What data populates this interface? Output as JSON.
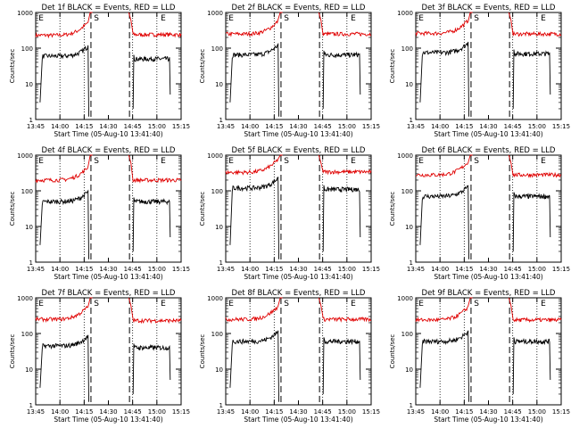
{
  "colors": {
    "events": "#000000",
    "lld": "#e00000",
    "axis": "#000000",
    "background": "#ffffff"
  },
  "chart_data": [
    {
      "type": "line",
      "title": "Det 1f BLACK = Events, RED = LLD",
      "xlabel": "Start Time (05-Aug-10 13:41:40)",
      "ylabel": "Counts/sec",
      "y_scale": "log",
      "ylim": [
        1,
        1000
      ],
      "y_ticks": [
        1,
        10,
        100,
        1000
      ],
      "x_ticks": [
        "13:45",
        "14:00",
        "14:15",
        "14:30",
        "14:45",
        "15:00",
        "15:15"
      ],
      "markers": [
        "E",
        "S",
        "E"
      ],
      "series": [
        {
          "name": "BLACK = Events",
          "color": "#000000",
          "level_before": 60,
          "level_after": 50
        },
        {
          "name": "RED = LLD",
          "color": "#e00000",
          "level_before": 230,
          "level_after": 240
        }
      ]
    },
    {
      "type": "line",
      "title": "Det 2f BLACK = Events, RED = LLD",
      "xlabel": "Start Time (05-Aug-10 13:41:40)",
      "ylabel": "Counts/sec",
      "y_scale": "log",
      "ylim": [
        1,
        1000
      ],
      "y_ticks": [
        1,
        10,
        100,
        1000
      ],
      "x_ticks": [
        "13:45",
        "14:00",
        "14:15",
        "14:30",
        "14:45",
        "15:00",
        "15:15"
      ],
      "markers": [
        "E",
        "S",
        "E"
      ],
      "series": [
        {
          "name": "BLACK = Events",
          "color": "#000000",
          "level_before": 65,
          "level_after": 65
        },
        {
          "name": "RED = LLD",
          "color": "#e00000",
          "level_before": 250,
          "level_after": 250
        }
      ]
    },
    {
      "type": "line",
      "title": "Det 3f BLACK = Events, RED = LLD",
      "xlabel": "Start Time (05-Aug-10 13:41:40)",
      "ylabel": "Counts/sec",
      "y_scale": "log",
      "ylim": [
        1,
        1000
      ],
      "y_ticks": [
        1,
        10,
        100,
        1000
      ],
      "x_ticks": [
        "13:45",
        "14:00",
        "14:15",
        "14:30",
        "14:45",
        "15:00",
        "15:15"
      ],
      "markers": [
        "E",
        "S",
        "E"
      ],
      "series": [
        {
          "name": "BLACK = Events",
          "color": "#000000",
          "level_before": 75,
          "level_after": 70
        },
        {
          "name": "RED = LLD",
          "color": "#e00000",
          "level_before": 260,
          "level_after": 250
        }
      ]
    },
    {
      "type": "line",
      "title": "Det 4f BLACK = Events, RED = LLD",
      "xlabel": "Start Time (05-Aug-10 13:41:40)",
      "ylabel": "Counts/sec",
      "y_scale": "log",
      "ylim": [
        1,
        1000
      ],
      "y_ticks": [
        1,
        10,
        100,
        1000
      ],
      "x_ticks": [
        "13:45",
        "14:00",
        "14:15",
        "14:30",
        "14:45",
        "15:00",
        "15:15"
      ],
      "markers": [
        "E",
        "S",
        "E"
      ],
      "series": [
        {
          "name": "BLACK = Events",
          "color": "#000000",
          "level_before": 50,
          "level_after": 50
        },
        {
          "name": "RED = LLD",
          "color": "#e00000",
          "level_before": 200,
          "level_after": 200
        }
      ]
    },
    {
      "type": "line",
      "title": "Det 5f BLACK = Events, RED = LLD",
      "xlabel": "Start Time (05-Aug-10 13:41:40)",
      "ylabel": "Counts/sec",
      "y_scale": "log",
      "ylim": [
        1,
        1000
      ],
      "y_ticks": [
        1,
        10,
        100,
        1000
      ],
      "x_ticks": [
        "13:45",
        "14:00",
        "14:15",
        "14:30",
        "14:45",
        "15:00",
        "15:15"
      ],
      "markers": [
        "E",
        "S",
        "E"
      ],
      "series": [
        {
          "name": "BLACK = Events",
          "color": "#000000",
          "level_before": 120,
          "level_after": 110
        },
        {
          "name": "RED = LLD",
          "color": "#e00000",
          "level_before": 330,
          "level_after": 340
        }
      ]
    },
    {
      "type": "line",
      "title": "Det 6f BLACK = Events, RED = LLD",
      "xlabel": "Start Time (05-Aug-10 13:41:40)",
      "ylabel": "Counts/sec",
      "y_scale": "log",
      "ylim": [
        1,
        1000
      ],
      "y_ticks": [
        1,
        10,
        100,
        1000
      ],
      "x_ticks": [
        "13:45",
        "14:00",
        "14:15",
        "14:30",
        "14:45",
        "15:00",
        "15:15"
      ],
      "markers": [
        "E",
        "S",
        "E"
      ],
      "series": [
        {
          "name": "BLACK = Events",
          "color": "#000000",
          "level_before": 70,
          "level_after": 70
        },
        {
          "name": "RED = LLD",
          "color": "#e00000",
          "level_before": 280,
          "level_after": 280
        }
      ]
    },
    {
      "type": "line",
      "title": "Det 7f BLACK = Events, RED = LLD",
      "xlabel": "Start Time (05-Aug-10 13:41:40)",
      "ylabel": "Counts/sec",
      "y_scale": "log",
      "ylim": [
        1,
        1000
      ],
      "y_ticks": [
        1,
        10,
        100,
        1000
      ],
      "x_ticks": [
        "13:45",
        "14:00",
        "14:15",
        "14:30",
        "14:45",
        "15:00",
        "15:15"
      ],
      "markers": [
        "E",
        "S",
        "E"
      ],
      "series": [
        {
          "name": "BLACK = Events",
          "color": "#000000",
          "level_before": 45,
          "level_after": 40
        },
        {
          "name": "RED = LLD",
          "color": "#e00000",
          "level_before": 250,
          "level_after": 230
        }
      ]
    },
    {
      "type": "line",
      "title": "Det 8f BLACK = Events, RED = LLD",
      "xlabel": "Start Time (05-Aug-10 13:41:40)",
      "ylabel": "Counts/sec",
      "y_scale": "log",
      "ylim": [
        1,
        1000
      ],
      "y_ticks": [
        1,
        10,
        100,
        1000
      ],
      "x_ticks": [
        "13:45",
        "14:00",
        "14:15",
        "14:30",
        "14:45",
        "15:00",
        "15:15"
      ],
      "markers": [
        "E",
        "S",
        "E"
      ],
      "series": [
        {
          "name": "BLACK = Events",
          "color": "#000000",
          "level_before": 60,
          "level_after": 60
        },
        {
          "name": "RED = LLD",
          "color": "#e00000",
          "level_before": 250,
          "level_after": 250
        }
      ]
    },
    {
      "type": "line",
      "title": "Det 9f BLACK = Events, RED = LLD",
      "xlabel": "Start Time (05-Aug-10 13:41:40)",
      "ylabel": "Counts/sec",
      "y_scale": "log",
      "ylim": [
        1,
        1000
      ],
      "y_ticks": [
        1,
        10,
        100,
        1000
      ],
      "x_ticks": [
        "13:45",
        "14:00",
        "14:15",
        "14:30",
        "14:45",
        "15:00",
        "15:15"
      ],
      "markers": [
        "E",
        "S",
        "E"
      ],
      "series": [
        {
          "name": "BLACK = Events",
          "color": "#000000",
          "level_before": 60,
          "level_after": 60
        },
        {
          "name": "RED = LLD",
          "color": "#e00000",
          "level_before": 240,
          "level_after": 240
        }
      ]
    }
  ]
}
